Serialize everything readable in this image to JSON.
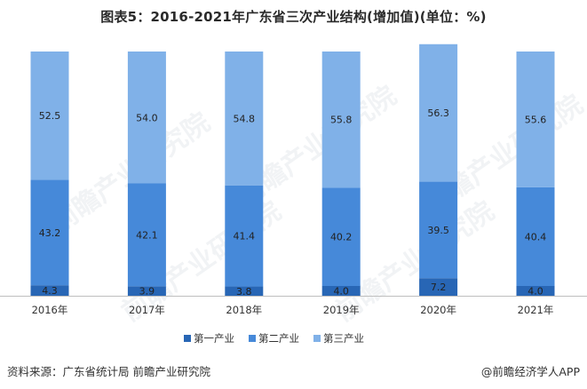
{
  "title": "图表5：2016-2021年广东省三次产业结构(增加值)(单位：%)",
  "colors": {
    "primary": "#2866b5",
    "secondary": "#4689d9",
    "tertiary": "#80b1e8"
  },
  "footer": {
    "source": "资料来源：广东省统计局 前瞻产业研究院",
    "brand": "@前瞻经济学人APP"
  },
  "watermark": "前瞻产业研究院",
  "chart_data": {
    "type": "bar",
    "stacked": true,
    "categories": [
      "2016年",
      "2017年",
      "2018年",
      "2019年",
      "2020年",
      "2021年"
    ],
    "series": [
      {
        "name": "第一产业",
        "values": [
          4.3,
          3.9,
          3.8,
          4.0,
          7.2,
          4.0
        ],
        "color": "#2866b5"
      },
      {
        "name": "第二产业",
        "values": [
          43.2,
          42.1,
          41.4,
          40.2,
          39.5,
          40.4
        ],
        "color": "#4689d9"
      },
      {
        "name": "第三产业",
        "values": [
          52.5,
          54.0,
          54.8,
          55.8,
          56.3,
          55.6
        ],
        "color": "#80b1e8"
      }
    ],
    "ylim": [
      0,
      104
    ],
    "legend_position": "bottom"
  }
}
